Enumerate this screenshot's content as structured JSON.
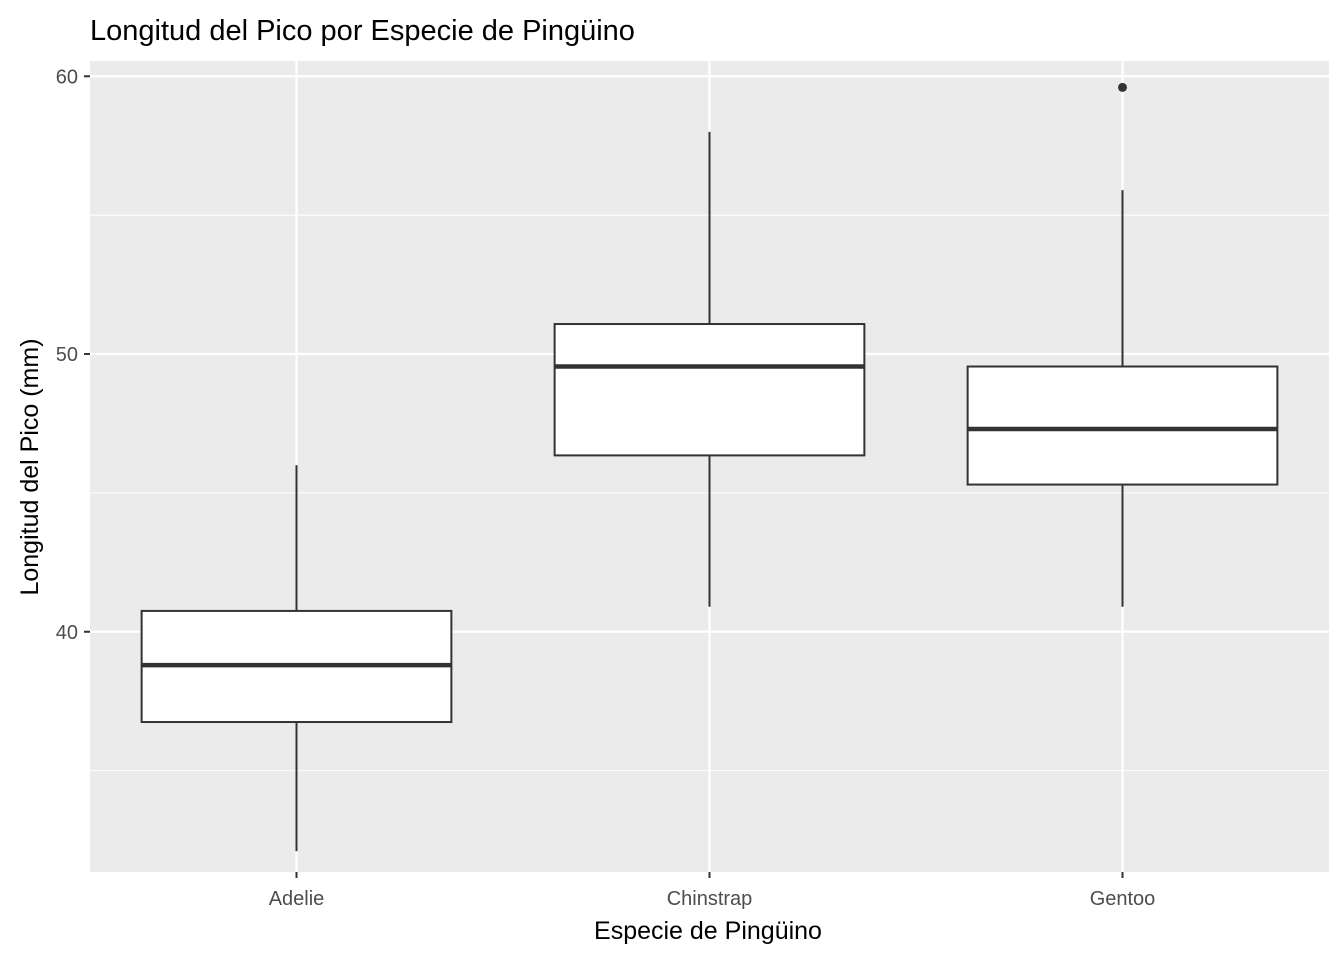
{
  "chart_data": {
    "type": "boxplot",
    "title": "Longitud del Pico por Especie de Pingüino",
    "xlabel": "Especie de Pingüino",
    "ylabel": "Longitud del Pico (mm)",
    "categories": [
      "Adelie",
      "Chinstrap",
      "Gentoo"
    ],
    "boxes": [
      {
        "category": "Adelie",
        "whisker_low": 32.1,
        "q1": 36.75,
        "median": 38.8,
        "q3": 40.75,
        "whisker_high": 46.0,
        "outliers": []
      },
      {
        "category": "Chinstrap",
        "whisker_low": 40.9,
        "q1": 46.35,
        "median": 49.55,
        "q3": 51.08,
        "whisker_high": 58.0,
        "outliers": []
      },
      {
        "category": "Gentoo",
        "whisker_low": 40.9,
        "q1": 45.3,
        "median": 47.3,
        "q3": 49.55,
        "whisker_high": 55.9,
        "outliers": [
          59.6
        ]
      }
    ],
    "ylim": [
      31.35,
      60.55
    ],
    "yticks": [
      40,
      50,
      60
    ],
    "grid": true,
    "legend": "none",
    "colors": {
      "panel_background": "#ebebeb",
      "grid": "#ffffff",
      "box_fill": "#ffffff",
      "box_stroke": "#333333",
      "tick_text": "#4d4d4d"
    }
  }
}
